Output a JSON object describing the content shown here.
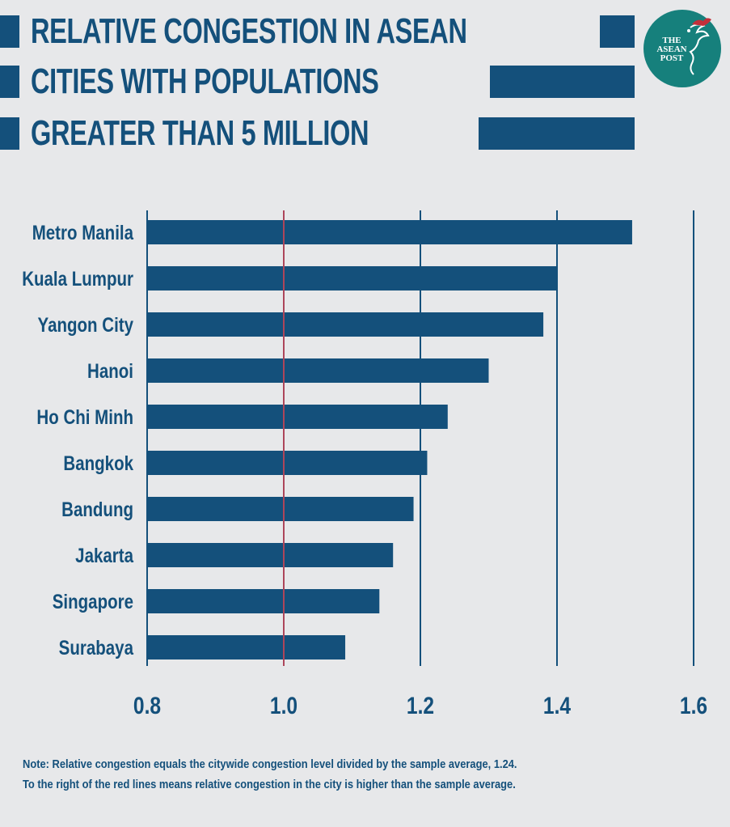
{
  "title_lines": [
    "RELATIVE CONGESTION IN ASEAN",
    "CITIES WITH POPULATIONS",
    "GREATER THAN 5 MILLION"
  ],
  "logo": {
    "line1": "THE",
    "line2": "ASEAN",
    "line3": "POST"
  },
  "colors": {
    "bar": "#14507b",
    "reference_line": "#e0434f",
    "background": "#e7e8ea",
    "logo_bg": "#16807c"
  },
  "chart_data": {
    "type": "bar",
    "orientation": "horizontal",
    "categories": [
      "Metro Manila",
      "Kuala Lumpur",
      "Yangon City",
      "Hanoi",
      "Ho Chi Minh",
      "Bangkok",
      "Bandung",
      "Jakarta",
      "Singapore",
      "Surabaya"
    ],
    "values": [
      1.51,
      1.4,
      1.38,
      1.3,
      1.24,
      1.21,
      1.19,
      1.16,
      1.14,
      1.09
    ],
    "xlim": [
      0.8,
      1.6
    ],
    "x_ticks": [
      "0.8",
      "1.0",
      "1.2",
      "1.4",
      "1.6"
    ],
    "x_tick_values": [
      0.8,
      1.0,
      1.2,
      1.4,
      1.6
    ],
    "reference_value": 1.0,
    "grid": true
  },
  "notes": [
    "Note: Relative congestion equals the citywide congestion level divided by the sample average, 1.24.",
    "To the right of the red lines means relative congestion in the city is higher than the sample average."
  ]
}
